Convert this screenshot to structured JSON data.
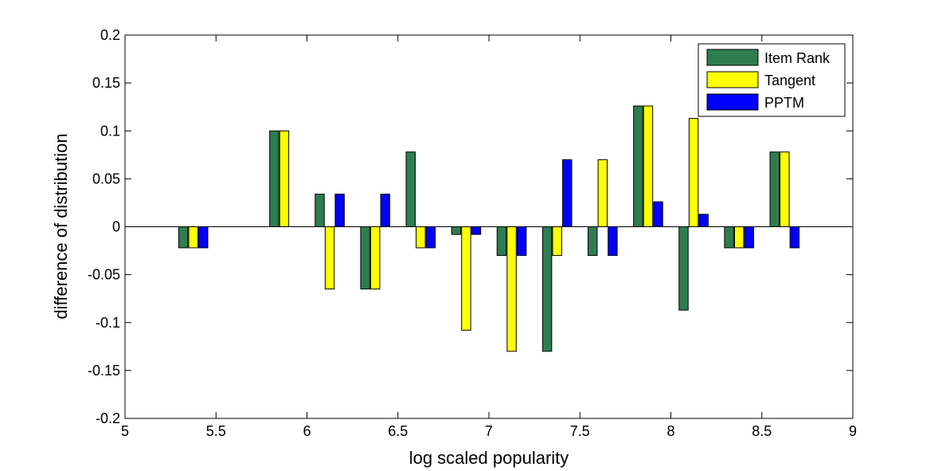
{
  "chart_data": {
    "type": "bar",
    "title": "",
    "xlabel": "log scaled popularity",
    "ylabel": "difference of distribution",
    "xlim": [
      5,
      9
    ],
    "ylim": [
      -0.2,
      0.2
    ],
    "xticks": [
      5,
      5.5,
      6,
      6.5,
      7,
      7.5,
      8,
      8.5,
      9
    ],
    "yticks": [
      -0.2,
      -0.15,
      -0.1,
      -0.05,
      0,
      0.05,
      0.1,
      0.15,
      0.2
    ],
    "x": [
      5.375,
      5.875,
      6.125,
      6.375,
      6.625,
      6.875,
      7.125,
      7.375,
      7.625,
      7.875,
      8.125,
      8.375,
      8.625
    ],
    "legend_position": "top-right",
    "grid": false,
    "series": [
      {
        "name": "Item Rank",
        "color": "#2e7d4f",
        "values": [
          -0.022,
          0.1,
          0.034,
          -0.065,
          0.078,
          -0.008,
          -0.03,
          -0.13,
          -0.03,
          0.126,
          -0.087,
          -0.022,
          0.078
        ]
      },
      {
        "name": "Tangent",
        "color": "#ffff00",
        "values": [
          -0.022,
          0.1,
          -0.065,
          -0.065,
          -0.022,
          -0.108,
          -0.13,
          -0.03,
          0.07,
          0.126,
          0.113,
          -0.022,
          0.078
        ]
      },
      {
        "name": "PPTM",
        "color": "#0000ff",
        "values": [
          -0.022,
          0,
          0.034,
          0.034,
          -0.022,
          -0.008,
          -0.03,
          0.07,
          -0.03,
          0.026,
          0.013,
          -0.022,
          -0.022
        ]
      }
    ]
  }
}
